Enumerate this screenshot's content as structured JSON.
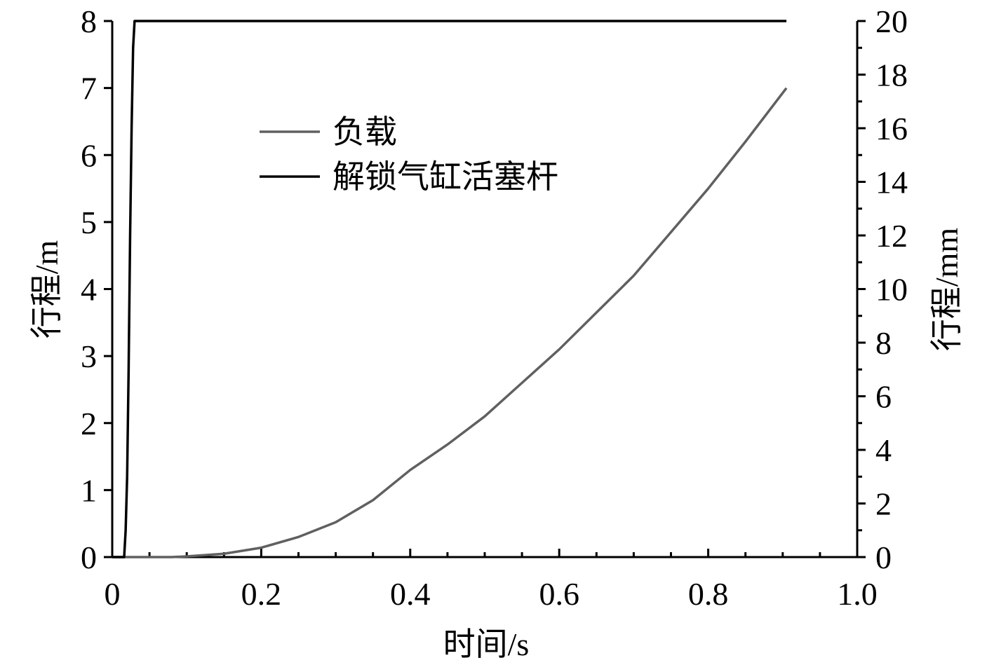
{
  "chart_data": {
    "type": "line",
    "xlabel": "时间/s",
    "ylabel": "行程/m",
    "y2label": "行程/mm",
    "xlim": [
      0,
      1
    ],
    "ylim": [
      0,
      8
    ],
    "y2lim": [
      0,
      20
    ],
    "xticks": [
      0,
      0.2,
      0.4,
      0.6,
      0.8,
      {
        "value": 1,
        "label": "1.0"
      }
    ],
    "xminorticks": [
      0.05,
      0.1,
      0.15,
      0.25,
      0.3,
      0.35,
      0.45,
      0.5,
      0.55,
      0.65,
      0.7,
      0.75,
      0.85,
      0.9,
      0.95
    ],
    "yticks": [
      0,
      1,
      2,
      3,
      4,
      5,
      6,
      7,
      8
    ],
    "y2ticks": [
      0,
      2,
      4,
      6,
      8,
      10,
      12,
      14,
      16,
      18,
      20
    ],
    "y2minorticks": [
      1,
      3,
      5,
      7,
      9,
      11,
      13,
      15,
      17,
      19
    ],
    "legend": "upper-center",
    "series": [
      {
        "name": "负载",
        "color": "#606060",
        "x": [
          0,
          0.08,
          0.1,
          0.15,
          0.2,
          0.25,
          0.3,
          0.35,
          0.4,
          0.45,
          0.5,
          0.55,
          0.6,
          0.65,
          0.7,
          0.75,
          0.8,
          0.85,
          0.905
        ],
        "values": [
          0,
          0,
          0.01,
          0.05,
          0.14,
          0.3,
          0.52,
          0.85,
          1.3,
          1.68,
          2.1,
          2.6,
          3.1,
          3.65,
          4.2,
          4.85,
          5.5,
          6.2,
          7.0
        ]
      },
      {
        "name": "解锁气缸活塞杆",
        "color": "#000000",
        "axis": "y2",
        "x": [
          0,
          0.016,
          0.018,
          0.02,
          0.022,
          0.024,
          0.026,
          0.028,
          0.03,
          0.905
        ],
        "values": [
          0,
          0,
          1,
          3,
          7,
          12,
          16,
          19,
          20,
          20
        ]
      }
    ]
  }
}
